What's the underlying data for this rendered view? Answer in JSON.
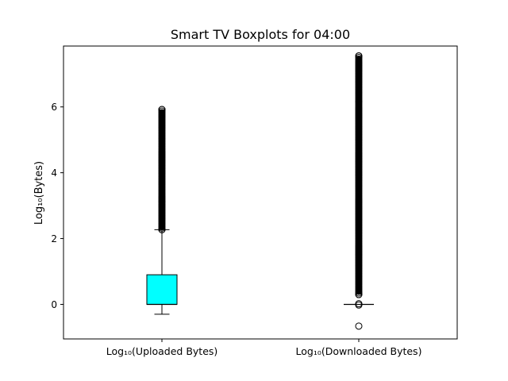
{
  "chart_data": {
    "type": "boxplot",
    "title": "Smart TV Boxplots for 04:00",
    "xlabel": "",
    "ylabel": "Log₁₀(Bytes)",
    "ylim": [
      -1.05,
      7.85
    ],
    "yticks": [
      0,
      2,
      4,
      6
    ],
    "grid": false,
    "categories": [
      "Log₁₀(Uploaded Bytes)",
      "Log₁₀(Downloaded Bytes)"
    ],
    "boxes": [
      {
        "name": "Log₁₀(Uploaded Bytes)",
        "fill": "#00ffff",
        "whisker_low": -0.3,
        "q1": 0.0,
        "median": 0.0,
        "q3": 0.9,
        "whisker_high": 2.27,
        "outliers_low": [],
        "outlier_range": [
          2.27,
          5.92
        ]
      },
      {
        "name": "Log₁₀(Downloaded Bytes)",
        "fill": "#00ffff",
        "whisker_low": 0.0,
        "q1": 0.0,
        "median": 0.0,
        "q3": 0.0,
        "whisker_high": 0.0,
        "outliers_low": [
          -0.66,
          -0.02,
          0.02
        ],
        "outlier_range": [
          0.3,
          7.55
        ]
      }
    ]
  }
}
